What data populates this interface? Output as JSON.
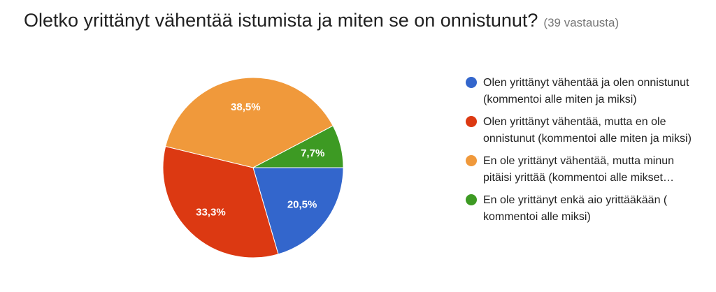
{
  "header": {
    "title": "Oletko yrittänyt vähentää istumista ja miten se on onnistunut?",
    "response_count": "(39 vastausta)"
  },
  "chart_data": {
    "type": "pie",
    "title": "Oletko yrittänyt vähentää istumista ja miten se on onnistunut?",
    "subtitle": "(39 vastausta)",
    "legend_position": "right",
    "slices": [
      {
        "label": "Olen yrittänyt vähentää ja olen onnistunut (kommentoi alle miten ja miksi)",
        "value": 20.5,
        "display": "20,5%",
        "color": "#3366cc"
      },
      {
        "label": "Olen yrittänyt vähentää, mutta en ole onnistunut (kommentoi alle miten ja miksi)",
        "value": 33.3,
        "display": "33,3%",
        "color": "#dc3912"
      },
      {
        "label": "En ole yrittänyt vähentää, mutta minun pitäisi yrittää (kommentoi alle mikset…",
        "value": 38.5,
        "display": "38,5%",
        "color": "#f0993b"
      },
      {
        "label": "En ole yrittänyt enkä aio yrittääkään ( kommentoi alle miksi)",
        "value": 7.7,
        "display": "7,7%",
        "color": "#3d9a23"
      }
    ]
  }
}
